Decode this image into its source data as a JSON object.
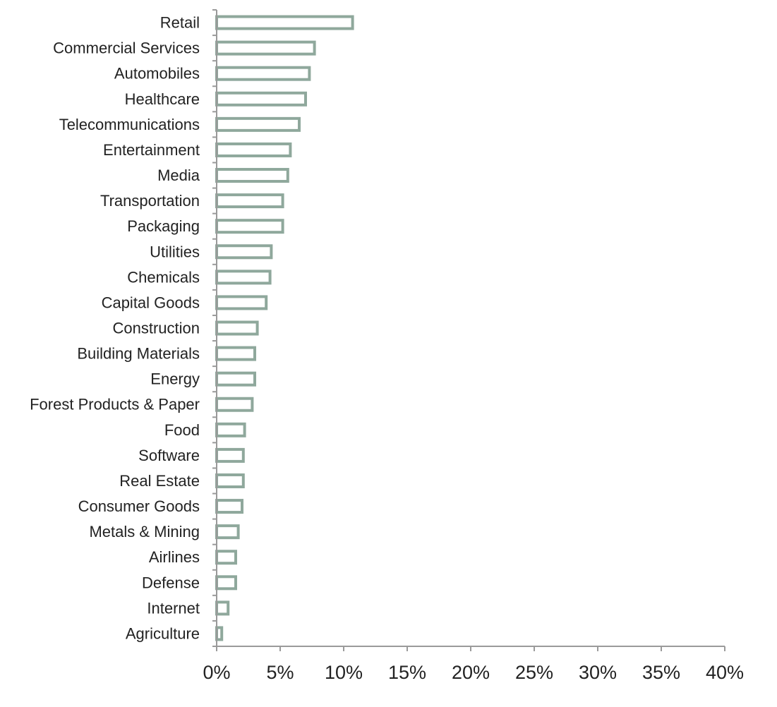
{
  "chart_data": {
    "type": "bar",
    "orientation": "horizontal",
    "title": "",
    "xlabel": "",
    "ylabel": "",
    "categories": [
      "Retail",
      "Commercial Services",
      "Automobiles",
      "Healthcare",
      "Telecommunications",
      "Entertainment",
      "Media",
      "Transportation",
      "Packaging",
      "Utilities",
      "Chemicals",
      "Capital Goods",
      "Construction",
      "Building Materials",
      "Energy",
      "Forest Products & Paper",
      "Food",
      "Software",
      "Real Estate",
      "Consumer Goods",
      "Metals & Mining",
      "Airlines",
      "Defense",
      "Internet",
      "Agriculture"
    ],
    "values": [
      10.7,
      7.7,
      7.3,
      7.0,
      6.5,
      5.8,
      5.6,
      5.2,
      5.2,
      4.3,
      4.2,
      3.9,
      3.2,
      3.0,
      3.0,
      2.8,
      2.2,
      2.1,
      2.1,
      2.0,
      1.7,
      1.5,
      1.5,
      0.9,
      0.4
    ],
    "xlim": [
      0,
      40
    ],
    "xticks": [
      0,
      5,
      10,
      15,
      20,
      25,
      30,
      35,
      40
    ],
    "xtick_labels": [
      "0%",
      "5%",
      "10%",
      "15%",
      "20%",
      "25%",
      "30%",
      "35%",
      "40%"
    ],
    "grid": false,
    "legend": "none",
    "bar_color": "#8fa89c",
    "axis_color": "#9a9a9a"
  }
}
